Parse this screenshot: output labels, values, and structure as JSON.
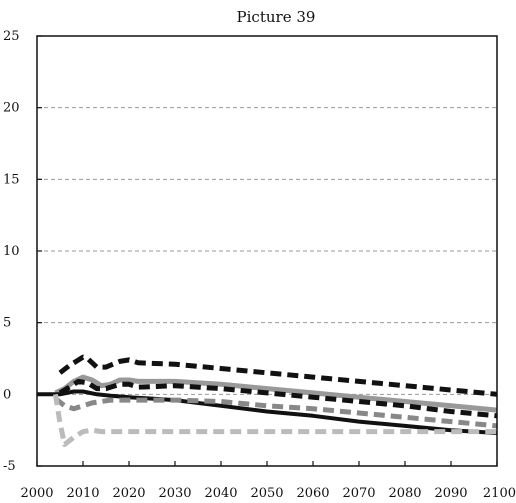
{
  "chart_data": {
    "type": "line",
    "title": "Picture 39",
    "xlabel": "",
    "ylabel": "",
    "xlim": [
      2000,
      2100
    ],
    "ylim": [
      -5,
      25
    ],
    "x_ticks": [
      2000,
      2010,
      2020,
      2030,
      2040,
      2050,
      2060,
      2070,
      2080,
      2090,
      2100
    ],
    "y_ticks": [
      -5,
      0,
      5,
      10,
      15,
      20,
      25
    ],
    "y_tick_labels": [
      "-5",
      "0",
      "5",
      "10",
      "15",
      "20",
      "25"
    ],
    "grid": "horizontal dashed",
    "legend": "none",
    "series": [
      {
        "color": "#111111",
        "style": "dashed",
        "width": 5,
        "points": [
          [
            2005,
            1.5
          ],
          [
            2007,
            2.0
          ],
          [
            2010,
            2.6
          ],
          [
            2011,
            2.5
          ],
          [
            2013,
            1.9
          ],
          [
            2015,
            1.9
          ],
          [
            2018,
            2.3
          ],
          [
            2020,
            2.4
          ],
          [
            2022,
            2.2
          ],
          [
            2030,
            2.1
          ],
          [
            2040,
            1.8
          ],
          [
            2050,
            1.5
          ],
          [
            2060,
            1.2
          ],
          [
            2070,
            0.9
          ],
          [
            2080,
            0.6
          ],
          [
            2090,
            0.3
          ],
          [
            2100,
            0.0
          ]
        ]
      },
      {
        "color": "#999999",
        "style": "solid",
        "width": 5,
        "points": [
          [
            2004,
            0.1
          ],
          [
            2006,
            0.4
          ],
          [
            2008,
            0.9
          ],
          [
            2010,
            1.2
          ],
          [
            2012,
            1.0
          ],
          [
            2014,
            0.6
          ],
          [
            2016,
            0.7
          ],
          [
            2018,
            1.0
          ],
          [
            2020,
            1.0
          ],
          [
            2022,
            0.9
          ],
          [
            2030,
            0.9
          ],
          [
            2040,
            0.7
          ],
          [
            2050,
            0.4
          ],
          [
            2060,
            0.1
          ],
          [
            2070,
            -0.2
          ],
          [
            2080,
            -0.5
          ],
          [
            2090,
            -0.8
          ],
          [
            2100,
            -1.1
          ]
        ]
      },
      {
        "color": "#111111",
        "style": "dashed",
        "width": 5,
        "points": [
          [
            2005,
            0.1
          ],
          [
            2007,
            0.5
          ],
          [
            2009,
            0.9
          ],
          [
            2011,
            0.8
          ],
          [
            2013,
            0.4
          ],
          [
            2015,
            0.4
          ],
          [
            2018,
            0.7
          ],
          [
            2020,
            0.7
          ],
          [
            2022,
            0.5
          ],
          [
            2030,
            0.6
          ],
          [
            2040,
            0.4
          ],
          [
            2050,
            0.1
          ],
          [
            2060,
            -0.2
          ],
          [
            2070,
            -0.5
          ],
          [
            2080,
            -0.8
          ],
          [
            2090,
            -1.2
          ],
          [
            2100,
            -1.5
          ]
        ]
      },
      {
        "color": "#111111",
        "style": "solid",
        "width": 4,
        "points": [
          [
            2000,
            0.0
          ],
          [
            2005,
            0.0
          ],
          [
            2008,
            0.2
          ],
          [
            2010,
            0.2
          ],
          [
            2013,
            0.0
          ],
          [
            2016,
            -0.1
          ],
          [
            2020,
            -0.2
          ],
          [
            2025,
            -0.3
          ],
          [
            2030,
            -0.4
          ],
          [
            2040,
            -0.8
          ],
          [
            2050,
            -1.2
          ],
          [
            2060,
            -1.5
          ],
          [
            2070,
            -1.9
          ],
          [
            2080,
            -2.2
          ],
          [
            2090,
            -2.5
          ],
          [
            2100,
            -2.7
          ]
        ]
      },
      {
        "color": "#888888",
        "style": "dashed",
        "width": 5,
        "points": [
          [
            2004,
            -0.3
          ],
          [
            2006,
            -0.8
          ],
          [
            2008,
            -1.0
          ],
          [
            2010,
            -0.8
          ],
          [
            2012,
            -0.6
          ],
          [
            2014,
            -0.5
          ],
          [
            2016,
            -0.4
          ],
          [
            2020,
            -0.4
          ],
          [
            2030,
            -0.4
          ],
          [
            2040,
            -0.5
          ],
          [
            2050,
            -0.8
          ],
          [
            2060,
            -1.0
          ],
          [
            2070,
            -1.3
          ],
          [
            2080,
            -1.6
          ],
          [
            2090,
            -1.9
          ],
          [
            2100,
            -2.2
          ]
        ]
      },
      {
        "color": "#bbbbbb",
        "style": "dashed",
        "width": 5,
        "points": [
          [
            2004,
            0.0
          ],
          [
            2005,
            -2.0
          ],
          [
            2006,
            -3.5
          ],
          [
            2008,
            -3.0
          ],
          [
            2010,
            -2.6
          ],
          [
            2012,
            -2.5
          ],
          [
            2014,
            -2.6
          ],
          [
            2016,
            -2.6
          ],
          [
            2020,
            -2.6
          ],
          [
            2030,
            -2.6
          ],
          [
            2040,
            -2.6
          ],
          [
            2050,
            -2.6
          ],
          [
            2060,
            -2.6
          ],
          [
            2070,
            -2.6
          ],
          [
            2080,
            -2.6
          ],
          [
            2090,
            -2.6
          ],
          [
            2100,
            -2.6
          ]
        ]
      }
    ]
  }
}
